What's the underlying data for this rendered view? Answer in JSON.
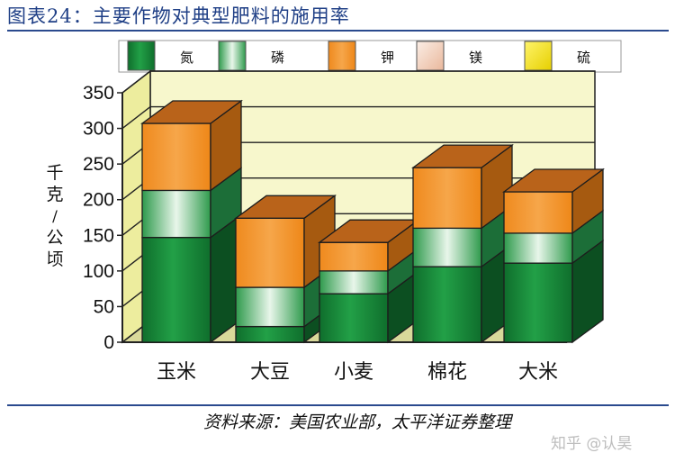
{
  "title": "图表24：主要作物对典型肥料的施用率",
  "source": "资料来源：美国农业部，太平洋证券整理",
  "watermark": "知乎 @认昊",
  "chart_data": {
    "type": "bar",
    "stacked": true,
    "three_d": true,
    "title": "图表24：主要作物对典型肥料的施用率",
    "ylabel": "千克/公顷",
    "xlabel": "",
    "ylim": [
      0,
      350
    ],
    "yticks": [
      0,
      50,
      100,
      150,
      200,
      250,
      300,
      350
    ],
    "grid": true,
    "legend_position": "top",
    "categories": [
      "玉米",
      "大豆",
      "小麦",
      "棉花",
      "大米"
    ],
    "series": [
      {
        "name": "氮",
        "color": "#1a8a3a",
        "values": [
          147,
          22,
          68,
          106,
          111
        ]
      },
      {
        "name": "磷",
        "color": "#8fd29a",
        "values": [
          66,
          55,
          32,
          54,
          42
        ]
      },
      {
        "name": "钾",
        "color": "#f39a2a",
        "values": [
          94,
          97,
          40,
          85,
          58
        ]
      },
      {
        "name": "镁",
        "color": "#f6d8c6",
        "values": [
          0,
          0,
          0,
          0,
          0
        ]
      },
      {
        "name": "硫",
        "color": "#f2e21c",
        "values": [
          0,
          0,
          0,
          0,
          0
        ]
      }
    ]
  }
}
